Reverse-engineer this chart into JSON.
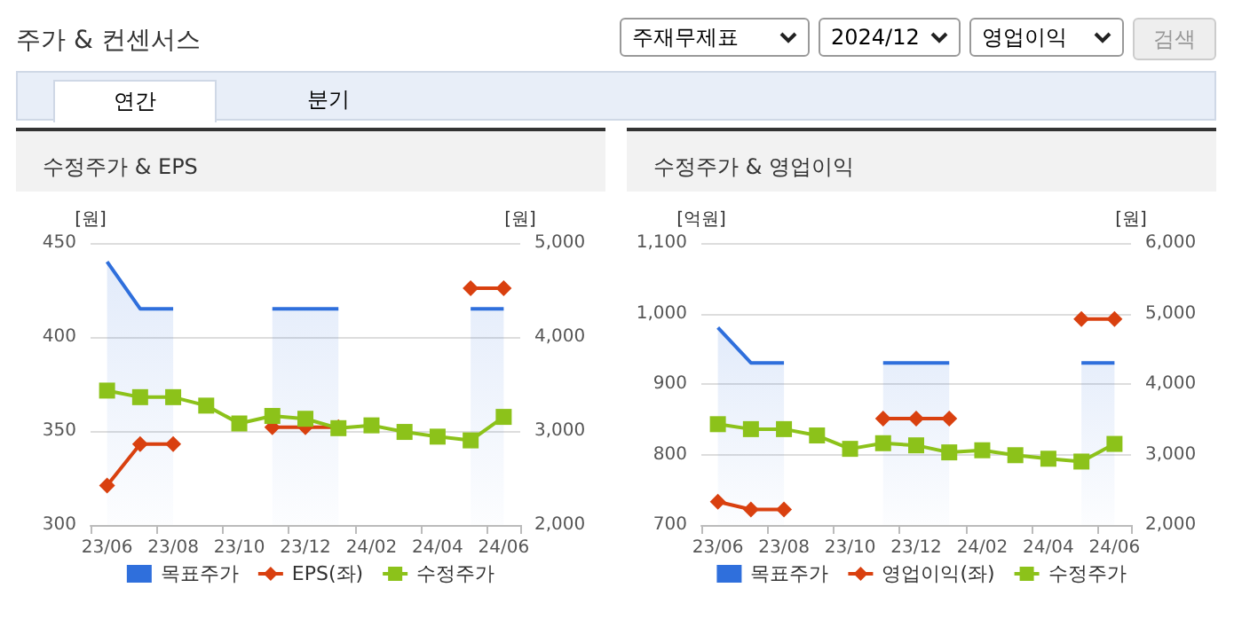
{
  "chart_data": [
    {
      "type": "other",
      "title": "주가 & 컨센서스",
      "annotations": [
        "주재무제표",
        "2024/12",
        "영업이익",
        "검색",
        "연간",
        "분기"
      ]
    },
    {
      "type": "line",
      "title": "수정주가 & EPS",
      "ylabel": "[원]",
      "y2label": "[원]",
      "categories": [
        "23/06",
        null,
        "23/08",
        null,
        "23/10",
        null,
        "23/12",
        null,
        "24/02",
        null,
        "24/04",
        null,
        "24/06"
      ],
      "series": [
        {
          "name": "목표주가",
          "type": "area",
          "axis": "y2",
          "color": "#2f6fdc",
          "marker": "none",
          "values": [
            4800,
            4300,
            4300,
            null,
            null,
            4300,
            4300,
            4300,
            null,
            null,
            null,
            4300,
            4300
          ]
        },
        {
          "name": "EPS(좌)",
          "type": "line",
          "color": "#d9400f",
          "marker": "diamond",
          "values": [
            321,
            343,
            343,
            null,
            null,
            352,
            352,
            352,
            null,
            null,
            null,
            426,
            426
          ]
        },
        {
          "name": "수정주가",
          "type": "line",
          "axis": "y2",
          "color": "#8cc21a",
          "marker": "square",
          "values": [
            3430,
            3360,
            3360,
            3270,
            3080,
            3160,
            3130,
            3030,
            3060,
            2990,
            2940,
            2900,
            3150
          ]
        }
      ],
      "ylim": [
        300,
        450
      ],
      "yticks": [
        300,
        350,
        400,
        450
      ],
      "y2lim": [
        2000,
        5000
      ],
      "y2ticks": [
        {
          "value": 2000,
          "label": "2,000"
        },
        {
          "value": 3000,
          "label": "3,000"
        },
        {
          "value": 4000,
          "label": "4,000"
        },
        {
          "value": 5000,
          "label": "5,000"
        }
      ],
      "grid": "y",
      "legend": "bottom"
    },
    {
      "type": "line",
      "title": "수정주가 & 영업이익",
      "ylabel": "[억원]",
      "y2label": "[원]",
      "categories": [
        "23/06",
        null,
        "23/08",
        null,
        "23/10",
        null,
        "23/12",
        null,
        "24/02",
        null,
        "24/04",
        null,
        "24/06"
      ],
      "series": [
        {
          "name": "목표주가",
          "type": "area",
          "axis": "y2",
          "color": "#2f6fdc",
          "marker": "none",
          "values": [
            4800,
            4300,
            4300,
            null,
            null,
            4300,
            4300,
            4300,
            null,
            null,
            null,
            4300,
            4300
          ]
        },
        {
          "name": "영업이익(좌)",
          "type": "line",
          "color": "#d9400f",
          "marker": "diamond",
          "values": [
            733,
            722,
            722,
            null,
            null,
            851,
            851,
            851,
            null,
            null,
            null,
            992,
            992
          ]
        },
        {
          "name": "수정주가",
          "type": "line",
          "axis": "y2",
          "color": "#8cc21a",
          "marker": "square",
          "values": [
            3430,
            3360,
            3360,
            3270,
            3080,
            3160,
            3130,
            3030,
            3060,
            2990,
            2940,
            2900,
            3150
          ]
        }
      ],
      "ylim": [
        700,
        1100
      ],
      "yticks": [
        700,
        800,
        900,
        {
          "value": 1000,
          "label": "1,000"
        },
        {
          "value": 1100,
          "label": "1,100"
        }
      ],
      "y2lim": [
        2000,
        6000
      ],
      "y2ticks": [
        {
          "value": 2000,
          "label": "2,000"
        },
        {
          "value": 3000,
          "label": "3,000"
        },
        {
          "value": 4000,
          "label": "4,000"
        },
        {
          "value": 5000,
          "label": "5,000"
        },
        {
          "value": 6000,
          "label": "6,000"
        }
      ],
      "grid": "y",
      "legend": "bottom"
    }
  ]
}
